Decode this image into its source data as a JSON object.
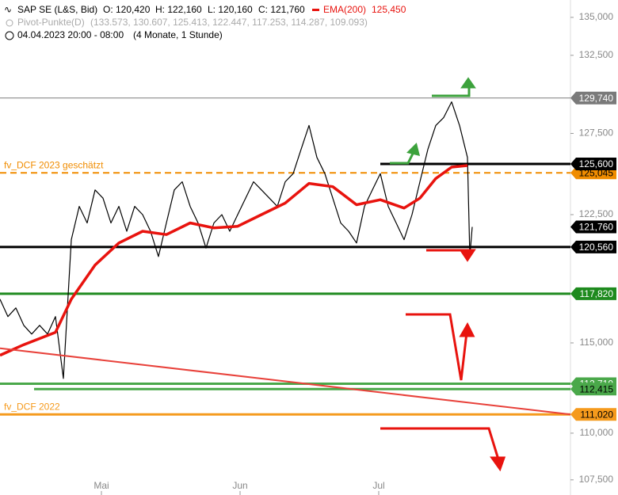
{
  "chart_data": {
    "type": "line",
    "header": {
      "instrument": "SAP SE (L&S, Bid)",
      "open": "O: 120,420",
      "high": "H: 122,160",
      "low": "L: 120,160",
      "close": "C: 121,760",
      "ema_name": "EMA(200)",
      "ema_value": "125,450",
      "pivot_name": "Pivot-Punkte(D)",
      "pivot_values": "(133.573, 130.607, 125.413, 122.447, 117.253, 114.287, 109.093)",
      "period": "04.04.2023 20:00 - 08:00",
      "period_note": "(4 Monate, 1 Stunde)"
    },
    "log_scale": true,
    "xlim": [
      0,
      72
    ],
    "xticks": [
      {
        "value": 12.8,
        "label": "Mai"
      },
      {
        "value": 30.3,
        "label": "Jun"
      },
      {
        "value": 47.8,
        "label": "Jul"
      }
    ],
    "ylim": [
      106.7,
      136.16
    ],
    "yticks": [
      {
        "value": 135,
        "label": "135,000"
      },
      {
        "value": 132.5,
        "label": "132,500"
      },
      {
        "value": 127.5,
        "label": "127,500"
      },
      {
        "value": 122.5,
        "label": "122,500"
      },
      {
        "value": 115,
        "label": "115,000"
      },
      {
        "value": 110,
        "label": "110,000"
      },
      {
        "value": 107.5,
        "label": "107,500"
      }
    ],
    "series": [
      {
        "name": "SAP SE (L&S, Bid)",
        "color": "#000000",
        "x": [
          0,
          1,
          2,
          3,
          4,
          5,
          6,
          7,
          8,
          9,
          10,
          11,
          12,
          13,
          14,
          15,
          16,
          17,
          18,
          19,
          20,
          21,
          22,
          23,
          24,
          25,
          26,
          27,
          28,
          29,
          30,
          31,
          32,
          33,
          34,
          35,
          36,
          37,
          38,
          39,
          40,
          41,
          42,
          43,
          44,
          45,
          46,
          47,
          48,
          49,
          50,
          51,
          52,
          53,
          54,
          55,
          56,
          57,
          58,
          59,
          59.3,
          59.6
        ],
        "values": [
          117.5,
          116.5,
          117,
          116,
          115.5,
          116,
          115.5,
          116.5,
          113,
          121,
          123,
          122,
          124,
          123.5,
          122,
          123,
          121.5,
          123,
          122.5,
          121.5,
          120,
          122,
          124,
          124.5,
          123,
          122,
          120.5,
          122,
          122.5,
          121.5,
          122.5,
          123.5,
          124.5,
          124,
          123.5,
          123,
          124.5,
          125,
          126.5,
          128,
          126,
          125,
          123.5,
          122,
          121.5,
          120.8,
          123,
          124,
          125,
          123,
          122,
          121,
          122.5,
          124.5,
          126.5,
          128,
          128.5,
          129.5,
          128,
          126,
          120,
          121.76
        ]
      },
      {
        "name": "EMA(200)",
        "color": "#e8130e",
        "x": [
          0,
          3,
          7,
          9,
          12,
          15,
          18,
          21,
          24,
          27,
          30,
          33,
          36,
          39,
          42,
          45,
          48,
          51,
          53,
          55,
          57,
          59
        ],
        "values": [
          114.3,
          114.9,
          115.6,
          117.5,
          119.5,
          120.8,
          121.5,
          121.3,
          122,
          121.7,
          121.8,
          122.5,
          123.2,
          124.4,
          124.2,
          123.1,
          123.4,
          122.9,
          123.5,
          124.7,
          125.4,
          125.5
        ]
      },
      {
        "name": "Trendlinie",
        "color": "#e8413a",
        "x": [
          0,
          72
        ],
        "values": [
          114.7,
          111.02
        ]
      }
    ],
    "levels": [
      {
        "value": 129.74,
        "label": "129,740",
        "color": "#7a7a7a",
        "text_color": "#ffffff",
        "start": 0,
        "width": 1
      },
      {
        "value": 125.045,
        "label": "125,045",
        "color": "#f08c00",
        "text_color": "#000000",
        "start": 0,
        "width": 2,
        "dashed": true,
        "annotation": "fv_DCF 2023 geschätzt"
      },
      {
        "value": 125.6,
        "label": "125,600",
        "color": "#000000",
        "text_color": "#ffffff",
        "start": 48,
        "width": 3
      },
      {
        "value": 121.76,
        "label": "121,760",
        "color": "#000000",
        "text_color": "#ffffff"
      },
      {
        "value": 120.56,
        "label": "120,560",
        "color": "#000000",
        "text_color": "#ffffff",
        "start": 0,
        "width": 3
      },
      {
        "value": 117.82,
        "label": "117,820",
        "color": "#1e8a1e",
        "text_color": "#ffffff",
        "start": 0,
        "width": 3
      },
      {
        "value": 112.71,
        "label": "112,710",
        "color": "#4aa84a",
        "text_color": "#ffffff",
        "start": 0,
        "width": 3
      },
      {
        "value": 112.415,
        "label": "112,415",
        "color": "#4aa84a",
        "text_color": "#000000",
        "start": 4.3,
        "width": 3
      },
      {
        "value": 111.02,
        "label": "111,020",
        "color": "#f59a1c",
        "text_color": "#000000",
        "start": 0,
        "width": 3,
        "annotation": "fv_DCF 2022"
      }
    ]
  }
}
